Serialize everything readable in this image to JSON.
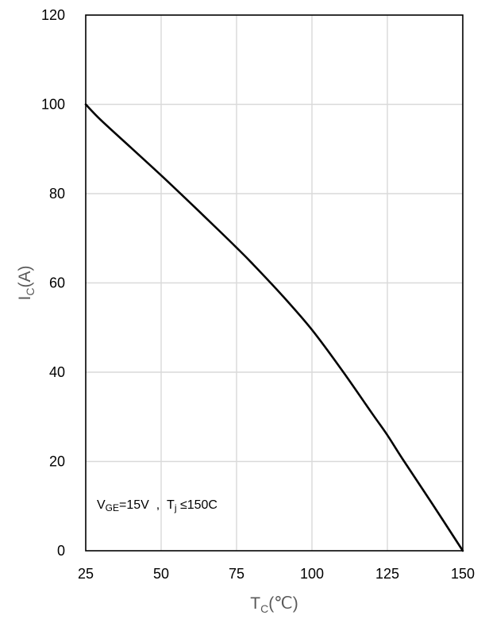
{
  "chart_data": {
    "type": "line",
    "title": "",
    "xlabel": {
      "main": "T",
      "sub": "C",
      "rest": "(℃)"
    },
    "ylabel": {
      "main": "I",
      "sub": "C",
      "rest": "(A)"
    },
    "xlim": [
      25,
      150
    ],
    "ylim": [
      0,
      120
    ],
    "xticks": [
      25,
      50,
      75,
      100,
      125,
      150
    ],
    "yticks": [
      0,
      20,
      40,
      60,
      80,
      100,
      120
    ],
    "grid": true,
    "series": [
      {
        "x": [
          25,
          30,
          40,
          50,
          60,
          70,
          75,
          80,
          90,
          100,
          110,
          120,
          125,
          130,
          140,
          150
        ],
        "y": [
          100,
          96.5,
          90.3,
          84.1,
          77.7,
          71.2,
          67.9,
          64.5,
          57.3,
          49.5,
          40.4,
          30.7,
          25.9,
          20.6,
          10.4,
          0
        ]
      }
    ],
    "annotation": {
      "v": "V",
      "v_sub": "GE",
      "mid": "=15V  ,  T",
      "t_sub": "j",
      "end": " ≤150C"
    },
    "colors": {
      "line": "#000000",
      "grid": "#d9d9d9",
      "frame": "#000000",
      "axis_title": "#595959"
    }
  }
}
